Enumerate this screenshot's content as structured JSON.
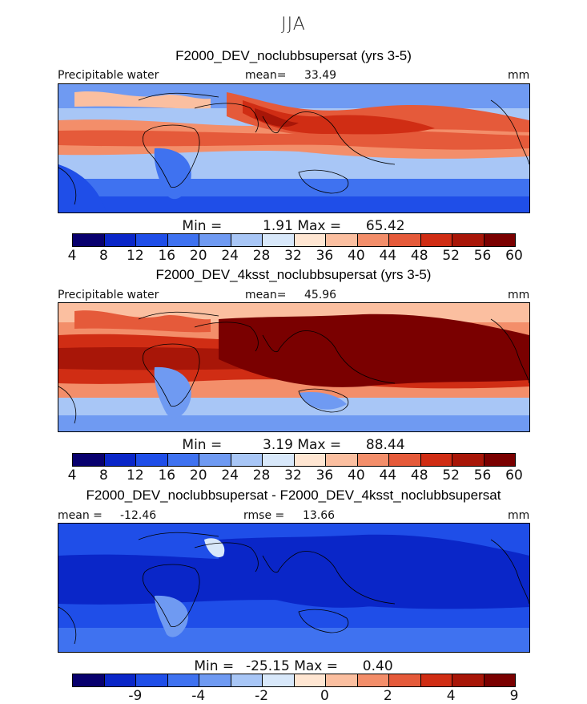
{
  "season": "JJA",
  "colors": [
    "#08006e",
    "#0a26c8",
    "#1f4ee8",
    "#3f72f0",
    "#6f9af2",
    "#a8c6f6",
    "#d8e8fa",
    "#ffe6d2",
    "#fbbfa0",
    "#f38e6a",
    "#e55a3a",
    "#d02d14",
    "#a81608",
    "#7a0000"
  ],
  "chart_data": [
    {
      "type": "heatmap",
      "title": "F2000_DEV_noclubbsupersat (yrs 3-5)",
      "field": "Precipitable water",
      "stat_label": "mean=",
      "stat_value": "33.49",
      "units": "mm",
      "min_label": "Min =",
      "min": "1.91",
      "max_label": "Max =",
      "max": "65.42",
      "colorbar_ticks": [
        "4",
        "8",
        "12",
        "16",
        "20",
        "24",
        "28",
        "32",
        "36",
        "40",
        "44",
        "48",
        "52",
        "56",
        "60"
      ]
    },
    {
      "type": "heatmap",
      "title": "F2000_DEV_4ksst_noclubbsupersat (yrs 3-5)",
      "field": "Precipitable water",
      "stat_label": "mean=",
      "stat_value": "45.96",
      "units": "mm",
      "min_label": "Min =",
      "min": "3.19",
      "max_label": "Max =",
      "max": "88.44",
      "colorbar_ticks": [
        "4",
        "8",
        "12",
        "16",
        "20",
        "24",
        "28",
        "32",
        "36",
        "40",
        "44",
        "48",
        "52",
        "56",
        "60"
      ]
    },
    {
      "type": "heatmap",
      "title": "F2000_DEV_noclubbsupersat - F2000_DEV_4ksst_noclubbsupersat",
      "stat_label": "mean =",
      "stat_value": "-12.46",
      "stat2_label": "rmse =",
      "stat2_value": "13.66",
      "units": "mm",
      "min_label": "Min =",
      "min": "-25.15",
      "max_label": "Max =",
      "max": "0.40",
      "colorbar_ticks": [
        "-9",
        "-4",
        "-2",
        "0",
        "2",
        "4",
        "9"
      ]
    }
  ]
}
